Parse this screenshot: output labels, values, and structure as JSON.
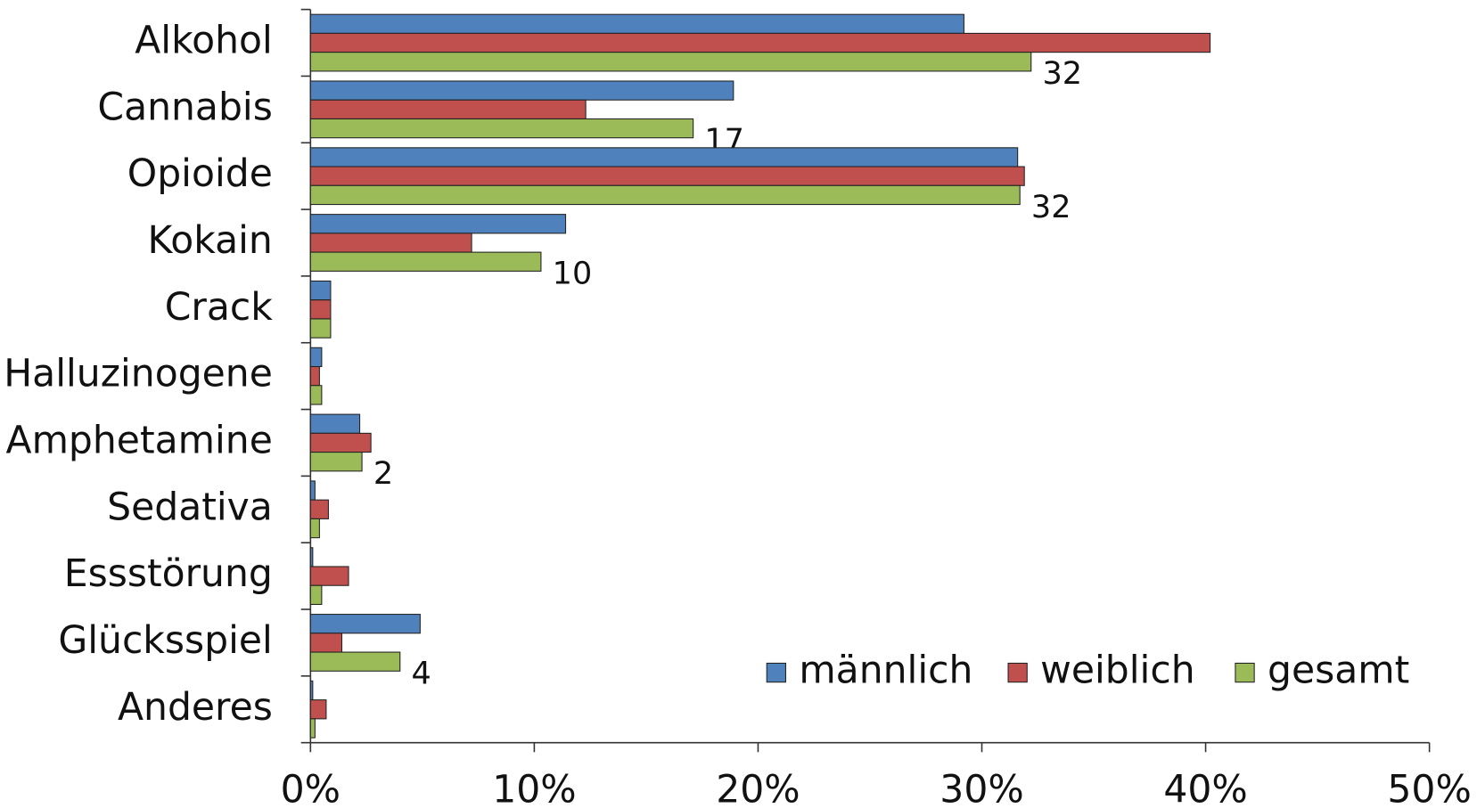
{
  "chart_data": {
    "type": "hbar",
    "categories": [
      "Alkohol",
      "Cannabis",
      "Opioide",
      "Kokain",
      "Crack",
      "Halluzinogene",
      "Amphetamine",
      "Sedativa",
      "Essstörung",
      "Glücksspiel",
      "Anderes"
    ],
    "series": [
      {
        "name": "männlich",
        "color": "#4f81bd",
        "values": [
          29.2,
          18.9,
          31.6,
          11.4,
          0.9,
          0.5,
          2.2,
          0.2,
          0.1,
          4.9,
          0.1
        ]
      },
      {
        "name": "weiblich",
        "color": "#c0504d",
        "values": [
          40.2,
          12.3,
          31.9,
          7.2,
          0.9,
          0.4,
          2.7,
          0.8,
          1.7,
          1.4,
          0.7
        ]
      },
      {
        "name": "gesamt",
        "color": "#9bbb59",
        "values": [
          32.2,
          17.1,
          31.7,
          10.3,
          0.9,
          0.5,
          2.3,
          0.4,
          0.5,
          4.0,
          0.2
        ],
        "value_labels": [
          "32",
          "17",
          "32",
          "10",
          null,
          null,
          "2",
          null,
          null,
          "4",
          null
        ]
      }
    ],
    "xlim": [
      0,
      50
    ],
    "xticks": [
      {
        "value": 0,
        "label": "0%"
      },
      {
        "value": 10,
        "label": "10%"
      },
      {
        "value": 20,
        "label": "20%"
      },
      {
        "value": 30,
        "label": "30%"
      },
      {
        "value": 40,
        "label": "40%"
      },
      {
        "value": 50,
        "label": "50%"
      }
    ],
    "legend": "lower right"
  }
}
